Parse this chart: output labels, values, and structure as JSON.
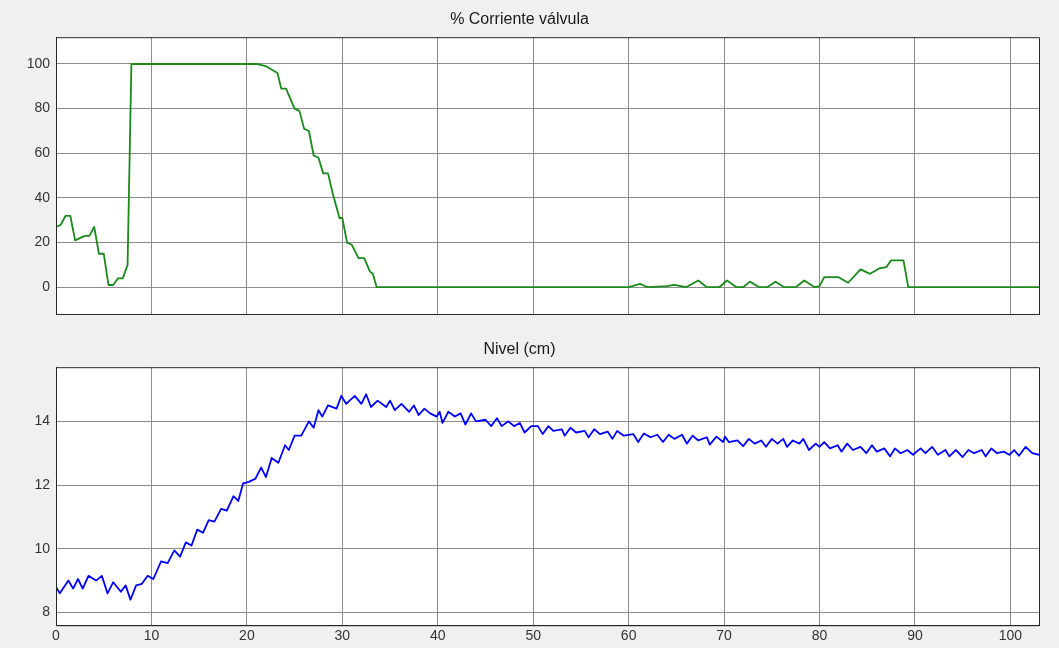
{
  "chart_data": [
    {
      "type": "line",
      "title": "% Corriente válvula",
      "xlim": [
        0,
        103
      ],
      "xticks": [
        0,
        10,
        20,
        30,
        40,
        50,
        60,
        70,
        80,
        90,
        100
      ],
      "ylim": [
        -12,
        112
      ],
      "yticks": [
        0,
        20,
        40,
        60,
        80,
        100
      ],
      "grid": true,
      "legend": false,
      "tick_labels": "y",
      "marker": "none",
      "line_style": "solid",
      "series": [
        {
          "color": "#1a8a1a",
          "x": [
            0,
            0.5,
            1,
            1.5,
            2,
            3,
            3.5,
            4,
            4.5,
            5,
            5.5,
            6,
            6.5,
            7,
            7.5,
            7.9,
            8.1,
            21,
            22,
            23.2,
            23.6,
            24.1,
            25,
            25.5,
            26,
            26.5,
            27,
            27.5,
            28,
            28.5,
            29,
            29.7,
            30,
            30.5,
            31,
            31.7,
            32.3,
            32.9,
            33.2,
            33.6,
            60,
            61.2,
            62,
            64,
            64.8,
            66,
            67.3,
            68.2,
            69.5,
            70.3,
            71.3,
            72,
            72.7,
            73.7,
            74.5,
            75.4,
            76.3,
            77.5,
            78.4,
            79.5,
            80,
            80.5,
            82,
            83,
            84.3,
            85.3,
            86.3,
            87,
            87.5,
            88.8,
            89.3,
            103
          ],
          "values": [
            27,
            28,
            32,
            32,
            21,
            23,
            23,
            27,
            15,
            15,
            1,
            1,
            4,
            4,
            10,
            100,
            100,
            100,
            99,
            96,
            89,
            89,
            80,
            79,
            71,
            70,
            59,
            58,
            51,
            51,
            42,
            31,
            31,
            20,
            19,
            13,
            13,
            7,
            6,
            0,
            0,
            1.5,
            0,
            0.5,
            1,
            0,
            3,
            0,
            0,
            3,
            0,
            0,
            2.5,
            0,
            0,
            2.5,
            0,
            0,
            3,
            0,
            0.5,
            4.5,
            4.5,
            2,
            8,
            6,
            8.5,
            9,
            12,
            12,
            0,
            0
          ]
        }
      ]
    },
    {
      "type": "line",
      "title": "Nivel (cm)",
      "xlim": [
        0,
        103
      ],
      "xticks": [
        0,
        10,
        20,
        30,
        40,
        50,
        60,
        70,
        80,
        90,
        100
      ],
      "ylim": [
        7.6,
        15.7
      ],
      "yticks": [
        8,
        10,
        12,
        14
      ],
      "grid": true,
      "legend": false,
      "marker": "none",
      "line_style": "solid",
      "series": [
        {
          "color": "#0000ff",
          "x": [
            0,
            0.4,
            1.3,
            1.8,
            2.3,
            2.8,
            3.4,
            4.2,
            4.8,
            5.4,
            6,
            6.8,
            7.3,
            7.8,
            8.4,
            9,
            9.6,
            10.2,
            11,
            11.7,
            12.4,
            13,
            13.6,
            14.2,
            14.8,
            15.4,
            16,
            16.6,
            17.3,
            17.9,
            18.6,
            19.1,
            19.6,
            20.2,
            20.9,
            21.5,
            22,
            22.6,
            23.3,
            24,
            24.4,
            25,
            25.7,
            26.5,
            27,
            27.5,
            27.9,
            28.5,
            29.4,
            29.9,
            30.4,
            31.3,
            32,
            32.5,
            33,
            33.7,
            34.6,
            35,
            35.5,
            36.2,
            37,
            37.5,
            38,
            38.6,
            39.2,
            39.9,
            40.2,
            40.5,
            41.1,
            41.8,
            42.4,
            42.9,
            43.5,
            44,
            45,
            45.6,
            46.2,
            46.7,
            47.4,
            48,
            48.6,
            49.1,
            49.8,
            50.5,
            51,
            51.6,
            52.1,
            53,
            53.3,
            53.9,
            54.5,
            55.4,
            55.8,
            56.4,
            57,
            57.8,
            58.3,
            58.8,
            59.5,
            60.5,
            61,
            61.6,
            62.3,
            63,
            63.6,
            64.2,
            64.8,
            65.6,
            66.1,
            66.7,
            67.3,
            68.2,
            68.5,
            69.2,
            69.9,
            70.1,
            70.5,
            71.4,
            72,
            72.6,
            73.2,
            73.9,
            74.4,
            75,
            75.6,
            76.2,
            76.6,
            77.2,
            77.9,
            78.3,
            78.9,
            79.6,
            80,
            80.5,
            81.1,
            81.9,
            82.3,
            82.9,
            83.5,
            84.3,
            84.9,
            85.5,
            86,
            86.8,
            87.4,
            87.9,
            88.5,
            89.2,
            89.8,
            90.6,
            91.1,
            91.8,
            92.4,
            93.2,
            93.6,
            94.3,
            95,
            95.6,
            96.2,
            97,
            97.4,
            98,
            98.6,
            99.3,
            99.9,
            100.4,
            100.9,
            101.6,
            102.3,
            103
          ],
          "values": [
            8.8,
            8.6,
            9.0,
            8.75,
            9.05,
            8.75,
            9.15,
            9.0,
            9.15,
            8.6,
            8.95,
            8.65,
            8.85,
            8.4,
            8.85,
            8.9,
            9.15,
            9.05,
            9.6,
            9.55,
            9.95,
            9.75,
            10.2,
            10.1,
            10.6,
            10.5,
            10.9,
            10.85,
            11.25,
            11.2,
            11.65,
            11.5,
            12.05,
            12.1,
            12.2,
            12.55,
            12.25,
            12.85,
            12.7,
            13.25,
            13.1,
            13.55,
            13.55,
            14.0,
            13.8,
            14.35,
            14.15,
            14.5,
            14.4,
            14.8,
            14.55,
            14.8,
            14.55,
            14.85,
            14.45,
            14.65,
            14.45,
            14.65,
            14.35,
            14.55,
            14.3,
            14.5,
            14.2,
            14.4,
            14.25,
            14.15,
            14.3,
            13.95,
            14.3,
            14.15,
            14.25,
            13.9,
            14.25,
            14.0,
            14.05,
            13.85,
            14.1,
            13.85,
            14.0,
            13.85,
            13.95,
            13.65,
            13.85,
            13.85,
            13.6,
            13.85,
            13.7,
            13.75,
            13.55,
            13.8,
            13.65,
            13.7,
            13.5,
            13.75,
            13.6,
            13.68,
            13.45,
            13.7,
            13.55,
            13.6,
            13.35,
            13.62,
            13.5,
            13.58,
            13.35,
            13.58,
            13.45,
            13.58,
            13.3,
            13.55,
            13.4,
            13.5,
            13.27,
            13.52,
            13.35,
            13.52,
            13.35,
            13.4,
            13.22,
            13.45,
            13.3,
            13.4,
            13.2,
            13.45,
            13.3,
            13.45,
            13.2,
            13.4,
            13.3,
            13.45,
            13.1,
            13.3,
            13.2,
            13.35,
            13.15,
            13.25,
            13.05,
            13.3,
            13.1,
            13.2,
            13.0,
            13.25,
            13.05,
            13.15,
            12.9,
            13.15,
            13.0,
            13.1,
            12.95,
            13.15,
            13.0,
            13.2,
            12.95,
            13.1,
            12.9,
            13.1,
            12.88,
            13.1,
            13.0,
            13.1,
            12.9,
            13.15,
            13.0,
            13.05,
            12.95,
            13.1,
            12.92,
            13.2,
            13.0,
            12.95
          ]
        }
      ]
    }
  ]
}
